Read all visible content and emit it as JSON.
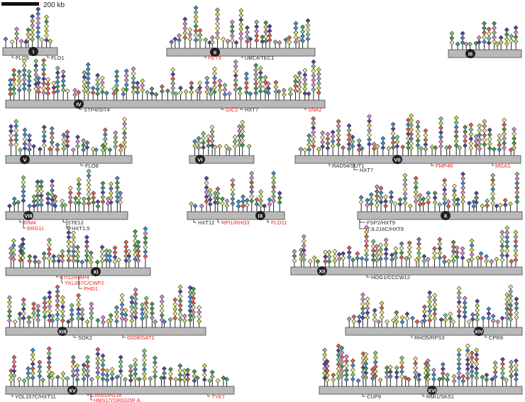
{
  "scale_bar": {
    "label": "200 kb"
  },
  "colors": {
    "chromosome_fill": "#b9b9b9",
    "chromosome_stroke": "#444444",
    "stem": "#222222",
    "label_black": "#222222",
    "label_red": "#e8251d",
    "centromere": "#1f1f1f",
    "marker_palette": [
      "#d4e04a",
      "#43a04b",
      "#f05a4a",
      "#5a3fb0",
      "#e28ad0",
      "#f2f08a",
      "#3a8fd8",
      "#7ed07e"
    ]
  },
  "chromosomes": [
    {
      "id": "I",
      "numeral": "I",
      "genes": [
        {
          "label": "FLO9",
          "color": "black"
        },
        {
          "label": "FLO1",
          "color": "black"
        }
      ]
    },
    {
      "id": "II",
      "numeral": "II",
      "genes": [
        {
          "label": "PET9",
          "color": "red"
        },
        {
          "label": "UBC4/TEC1",
          "color": "black"
        }
      ]
    },
    {
      "id": "III",
      "numeral": "III",
      "genes": []
    },
    {
      "id": "IV",
      "numeral": "IV",
      "genes": [
        {
          "label": "STP4/SIT4",
          "color": "black"
        },
        {
          "label": "GIC2",
          "color": "red"
        },
        {
          "label": "HXT7",
          "color": "black"
        },
        {
          "label": "SNA2",
          "color": "red"
        }
      ]
    },
    {
      "id": "V",
      "numeral": "V",
      "genes": [
        {
          "label": "FLO8",
          "color": "black"
        }
      ]
    },
    {
      "id": "VI",
      "numeral": "VI",
      "genes": []
    },
    {
      "id": "VII",
      "numeral": "VII",
      "genes": [
        {
          "label": "RAD54/SUT1",
          "color": "black"
        },
        {
          "label": "HXT7",
          "color": "black"
        },
        {
          "label": "FMP48",
          "color": "red"
        },
        {
          "label": "MGA1",
          "color": "red"
        }
      ]
    },
    {
      "id": "VIII",
      "numeral": "VIII",
      "genes": [
        {
          "label": "RIM4",
          "color": "red"
        },
        {
          "label": "ERG11",
          "color": "red"
        },
        {
          "label": "STE12",
          "color": "black"
        },
        {
          "label": "HXT1,5",
          "color": "black"
        }
      ]
    },
    {
      "id": "IX",
      "numeral": "IX",
      "genes": [
        {
          "label": "HXT12",
          "color": "black"
        },
        {
          "label": "RPI1/RHO3",
          "color": "red"
        },
        {
          "label": "FLO11",
          "color": "red"
        }
      ]
    },
    {
      "id": "X",
      "numeral": "X",
      "genes": [
        {
          "label": "FSP2/HXT9",
          "color": "black"
        },
        {
          "label": "YJL216C/HXT8",
          "color": "black"
        }
      ]
    },
    {
      "id": "XI",
      "numeral": "XI",
      "genes": [
        {
          "label": "KTI12/HAP4",
          "color": "red"
        },
        {
          "label": "YKL097C/CWP2",
          "color": "red"
        },
        {
          "label": "PHD1",
          "color": "red"
        }
      ]
    },
    {
      "id": "XII",
      "numeral": "XII",
      "genes": [
        {
          "label": "HOG1/CCCW12",
          "color": "black"
        }
      ]
    },
    {
      "id": "XIII",
      "numeral": "XIII",
      "genes": [
        {
          "label": "SOK2",
          "color": "black"
        },
        {
          "label": "GID8/GAT2",
          "color": "red"
        }
      ]
    },
    {
      "id": "XIV",
      "numeral": "XIV",
      "genes": [
        {
          "label": "RHO5/RPS3",
          "color": "black"
        },
        {
          "label": "CPR8",
          "color": "black"
        }
      ]
    },
    {
      "id": "XV",
      "numeral": "XV",
      "genes": [
        {
          "label": "YOL157C/HXT11",
          "color": "black"
        },
        {
          "label": "CIN5/DFG16",
          "color": "red"
        },
        {
          "label": "HMS1/YDR032W-A",
          "color": "red"
        },
        {
          "label": "TYE7",
          "color": "red"
        }
      ]
    },
    {
      "id": "XVI",
      "numeral": "XVI",
      "genes": [
        {
          "label": "CUP9",
          "color": "black"
        },
        {
          "label": "RMI1/SKS1",
          "color": "black"
        }
      ]
    }
  ]
}
